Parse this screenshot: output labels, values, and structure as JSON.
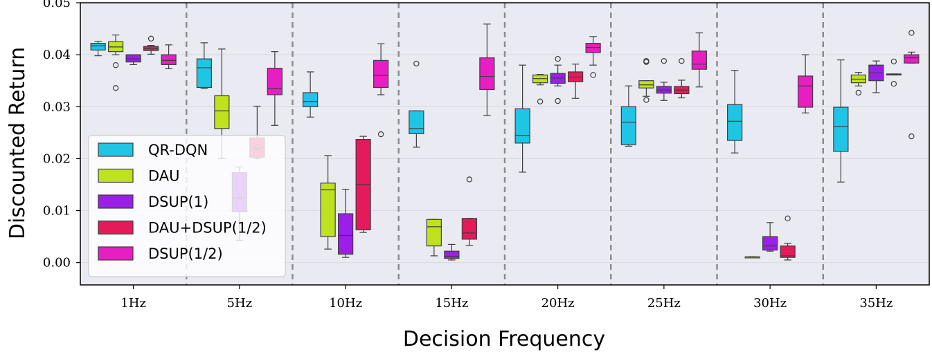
{
  "chart_data": {
    "type": "box",
    "title": "",
    "xlabel": "Decision Frequency",
    "ylabel": "Discounted Return",
    "ylim": [
      -0.0043,
      0.05
    ],
    "yticks": [
      0.0,
      0.01,
      0.02,
      0.03,
      0.04,
      0.05
    ],
    "ytick_labels": [
      "0.00",
      "0.01",
      "0.02",
      "0.03",
      "0.04",
      "0.05"
    ],
    "categories": [
      "1Hz",
      "5Hz",
      "10Hz",
      "15Hz",
      "20Hz",
      "25Hz",
      "30Hz",
      "35Hz"
    ],
    "grid": "horizontal",
    "legend_position": "middle-left",
    "series": [
      {
        "name": "QR-DQN",
        "color": "#1ec5e5",
        "boxes": [
          {
            "whislo": 0.0398,
            "q1": 0.0409,
            "med": 0.0417,
            "q3": 0.0422,
            "whishi": 0.0426,
            "fliers": []
          },
          {
            "whislo": 0.0335,
            "q1": 0.0337,
            "med": 0.0375,
            "q3": 0.0392,
            "whishi": 0.0423,
            "fliers": []
          },
          {
            "whislo": 0.028,
            "q1": 0.03,
            "med": 0.031,
            "q3": 0.0327,
            "whishi": 0.0367,
            "fliers": []
          },
          {
            "whislo": 0.0222,
            "q1": 0.0248,
            "med": 0.0258,
            "q3": 0.0292,
            "whishi": 0.0292,
            "fliers": [
              0.0383
            ]
          },
          {
            "whislo": 0.0174,
            "q1": 0.023,
            "med": 0.0245,
            "q3": 0.0296,
            "whishi": 0.038,
            "fliers": []
          },
          {
            "whislo": 0.0224,
            "q1": 0.0227,
            "med": 0.027,
            "q3": 0.03,
            "whishi": 0.034,
            "fliers": []
          },
          {
            "whislo": 0.0211,
            "q1": 0.0235,
            "med": 0.0272,
            "q3": 0.0304,
            "whishi": 0.037,
            "fliers": []
          },
          {
            "whislo": 0.0155,
            "q1": 0.0214,
            "med": 0.0262,
            "q3": 0.0299,
            "whishi": 0.039,
            "fliers": []
          }
        ]
      },
      {
        "name": "DAU",
        "color": "#bfe21e",
        "boxes": [
          {
            "whislo": 0.04,
            "q1": 0.0406,
            "med": 0.0415,
            "q3": 0.0425,
            "whishi": 0.0438,
            "fliers": [
              0.038,
              0.0336
            ]
          },
          {
            "whislo": 0.02,
            "q1": 0.0258,
            "med": 0.0292,
            "q3": 0.0321,
            "whishi": 0.0411,
            "fliers": []
          },
          {
            "whislo": 0.0026,
            "q1": 0.005,
            "med": 0.014,
            "q3": 0.0153,
            "whishi": 0.0206,
            "fliers": []
          },
          {
            "whislo": 0.0013,
            "q1": 0.0032,
            "med": 0.0069,
            "q3": 0.0083,
            "whishi": 0.0083,
            "fliers": []
          },
          {
            "whislo": 0.0342,
            "q1": 0.0346,
            "med": 0.0354,
            "q3": 0.0361,
            "whishi": 0.0362,
            "fliers": [
              0.031
            ]
          },
          {
            "whislo": 0.032,
            "q1": 0.0336,
            "med": 0.0342,
            "q3": 0.035,
            "whishi": 0.035,
            "fliers": [
              0.0386,
              0.0388,
              0.0313
            ]
          },
          {
            "whislo": 0.0011,
            "q1": 0.0011,
            "med": 0.0011,
            "q3": 0.0011,
            "whishi": 0.0011,
            "fliers": []
          },
          {
            "whislo": 0.034,
            "q1": 0.0346,
            "med": 0.0353,
            "q3": 0.0361,
            "whishi": 0.0366,
            "fliers": [
              0.0327
            ]
          }
        ]
      },
      {
        "name": "DSUP(1)",
        "color": "#9b1fe8",
        "boxes": [
          {
            "whislo": 0.0381,
            "q1": 0.0386,
            "med": 0.0392,
            "q3": 0.04,
            "whishi": 0.04,
            "fliers": []
          },
          {
            "whislo": 0.0043,
            "q1": 0.0098,
            "med": 0.0125,
            "q3": 0.0173,
            "whishi": 0.0184,
            "fliers": [
              0.0126
            ]
          },
          {
            "whislo": 0.001,
            "q1": 0.0016,
            "med": 0.0052,
            "q3": 0.0094,
            "whishi": 0.0141,
            "fliers": []
          },
          {
            "whislo": 0.0005,
            "q1": 0.0008,
            "med": 0.0012,
            "q3": 0.0022,
            "whishi": 0.0035,
            "fliers": []
          },
          {
            "whislo": 0.034,
            "q1": 0.0345,
            "med": 0.0355,
            "q3": 0.0364,
            "whishi": 0.038,
            "fliers": [
              0.0392,
              0.0311
            ]
          },
          {
            "whislo": 0.0312,
            "q1": 0.0326,
            "med": 0.0332,
            "q3": 0.0339,
            "whishi": 0.0347,
            "fliers": [
              0.0388
            ]
          },
          {
            "whislo": 0.0022,
            "q1": 0.0024,
            "med": 0.0032,
            "q3": 0.005,
            "whishi": 0.0077,
            "fliers": []
          },
          {
            "whislo": 0.0327,
            "q1": 0.035,
            "med": 0.0365,
            "q3": 0.038,
            "whishi": 0.0388,
            "fliers": []
          }
        ]
      },
      {
        "name": "DAU+DSUP(1/2)",
        "color": "#e51a5a",
        "boxes": [
          {
            "whislo": 0.0401,
            "q1": 0.0408,
            "med": 0.0412,
            "q3": 0.0416,
            "whishi": 0.0418,
            "fliers": [
              0.0431
            ]
          },
          {
            "whislo": 0.02,
            "q1": 0.0203,
            "med": 0.022,
            "q3": 0.024,
            "whishi": 0.0301,
            "fliers": [
              0.0222
            ]
          },
          {
            "whislo": 0.0058,
            "q1": 0.0063,
            "med": 0.015,
            "q3": 0.0237,
            "whishi": 0.0243,
            "fliers": []
          },
          {
            "whislo": 0.0033,
            "q1": 0.0045,
            "med": 0.0057,
            "q3": 0.0085,
            "whishi": 0.0085,
            "fliers": [
              0.016
            ]
          },
          {
            "whislo": 0.0316,
            "q1": 0.0348,
            "med": 0.0357,
            "q3": 0.0367,
            "whishi": 0.0382,
            "fliers": []
          },
          {
            "whislo": 0.0317,
            "q1": 0.0325,
            "med": 0.0332,
            "q3": 0.0339,
            "whishi": 0.0351,
            "fliers": [
              0.0388
            ]
          },
          {
            "whislo": 0.0005,
            "q1": 0.001,
            "med": 0.0013,
            "q3": 0.0032,
            "whishi": 0.0037,
            "fliers": [
              0.0085
            ]
          },
          {
            "whislo": 0.0361,
            "q1": 0.0361,
            "med": 0.0362,
            "q3": 0.0363,
            "whishi": 0.0363,
            "fliers": [
              0.0387,
              0.0344
            ]
          }
        ]
      },
      {
        "name": "DSUP(1/2)",
        "color": "#e81ec3",
        "boxes": [
          {
            "whislo": 0.0373,
            "q1": 0.0381,
            "med": 0.0389,
            "q3": 0.04,
            "whishi": 0.0419,
            "fliers": []
          },
          {
            "whislo": 0.0264,
            "q1": 0.0323,
            "med": 0.0335,
            "q3": 0.0374,
            "whishi": 0.0406,
            "fliers": []
          },
          {
            "whislo": 0.0323,
            "q1": 0.0337,
            "med": 0.036,
            "q3": 0.0389,
            "whishi": 0.0421,
            "fliers": [
              0.0247
            ]
          },
          {
            "whislo": 0.0283,
            "q1": 0.0333,
            "med": 0.0358,
            "q3": 0.0394,
            "whishi": 0.0459,
            "fliers": []
          },
          {
            "whislo": 0.038,
            "q1": 0.0404,
            "med": 0.0414,
            "q3": 0.0422,
            "whishi": 0.0435,
            "fliers": [
              0.0361
            ]
          },
          {
            "whislo": 0.0338,
            "q1": 0.0372,
            "med": 0.0382,
            "q3": 0.0407,
            "whishi": 0.0442,
            "fliers": []
          },
          {
            "whislo": 0.0288,
            "q1": 0.0299,
            "med": 0.034,
            "q3": 0.0359,
            "whishi": 0.04,
            "fliers": []
          },
          {
            "whislo": 0.0384,
            "q1": 0.0384,
            "med": 0.0394,
            "q3": 0.04,
            "whishi": 0.0405,
            "fliers": [
              0.0442,
              0.0243
            ]
          }
        ]
      }
    ]
  },
  "colors": {
    "plot_background": "#eaeaf2",
    "grid": "#d9d9e3",
    "separator": "#8c8c8c",
    "whisker": "#3d3d3d"
  }
}
